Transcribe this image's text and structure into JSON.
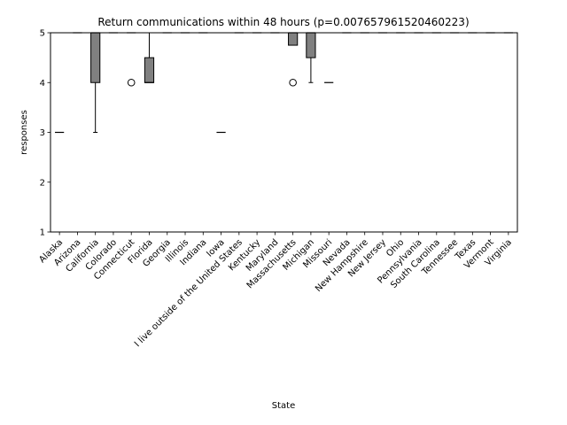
{
  "chart_data": {
    "type": "box",
    "title": "Return communications within 48 hours (p=0.007657961520460223)",
    "xlabel": "State",
    "ylabel": "responses",
    "ylim": [
      1,
      5
    ],
    "yticks": [
      1,
      2,
      3,
      4,
      5
    ],
    "box_color": "#808080",
    "categories": [
      "Alaska",
      "Arizona",
      "California",
      "Colorado",
      "Connecticut",
      "Florida",
      "Georgia",
      "Illinois",
      "Indiana",
      "Iowa",
      "I live outside of the United States",
      "Kentucky",
      "Maryland",
      "Massachusetts",
      "Michigan",
      "Missouri",
      "Nevada",
      "New Hampshire",
      "New Jersey",
      "Ohio",
      "Pennsylvania",
      "South Carolina",
      "Tennessee",
      "Texas",
      "Vermont",
      "Virginia"
    ],
    "boxes": [
      {
        "q1": 3,
        "median": 3,
        "q3": 3,
        "whislo": 3,
        "whishi": 3,
        "fliers": []
      },
      {
        "q1": 5,
        "median": 5,
        "q3": 5,
        "whislo": 5,
        "whishi": 5,
        "fliers": []
      },
      {
        "q1": 4,
        "median": 5,
        "q3": 5,
        "whislo": 3,
        "whishi": 5,
        "fliers": []
      },
      {
        "q1": 5,
        "median": 5,
        "q3": 5,
        "whislo": 5,
        "whishi": 5,
        "fliers": []
      },
      {
        "q1": 5,
        "median": 5,
        "q3": 5,
        "whislo": 5,
        "whishi": 5,
        "fliers": [
          4
        ]
      },
      {
        "q1": 4,
        "median": 4,
        "q3": 4.5,
        "whislo": 4,
        "whishi": 5,
        "fliers": []
      },
      {
        "q1": 5,
        "median": 5,
        "q3": 5,
        "whislo": 5,
        "whishi": 5,
        "fliers": []
      },
      {
        "q1": 5,
        "median": 5,
        "q3": 5,
        "whislo": 5,
        "whishi": 5,
        "fliers": []
      },
      {
        "q1": 5,
        "median": 5,
        "q3": 5,
        "whislo": 5,
        "whishi": 5,
        "fliers": []
      },
      {
        "q1": 3,
        "median": 3,
        "q3": 3,
        "whislo": 3,
        "whishi": 3,
        "fliers": []
      },
      {
        "q1": 5,
        "median": 5,
        "q3": 5,
        "whislo": 5,
        "whishi": 5,
        "fliers": []
      },
      {
        "q1": 5,
        "median": 5,
        "q3": 5,
        "whislo": 5,
        "whishi": 5,
        "fliers": []
      },
      {
        "q1": 5,
        "median": 5,
        "q3": 5,
        "whislo": 5,
        "whishi": 5,
        "fliers": []
      },
      {
        "q1": 4.75,
        "median": 5,
        "q3": 5,
        "whislo": 4.75,
        "whishi": 5,
        "fliers": [
          4
        ]
      },
      {
        "q1": 4.5,
        "median": 5,
        "q3": 5,
        "whislo": 4,
        "whishi": 5,
        "fliers": []
      },
      {
        "q1": 4,
        "median": 4,
        "q3": 4,
        "whislo": 4,
        "whishi": 4,
        "fliers": []
      },
      {
        "q1": 5,
        "median": 5,
        "q3": 5,
        "whislo": 5,
        "whishi": 5,
        "fliers": []
      },
      {
        "q1": 5,
        "median": 5,
        "q3": 5,
        "whislo": 5,
        "whishi": 5,
        "fliers": []
      },
      {
        "q1": 5,
        "median": 5,
        "q3": 5,
        "whislo": 5,
        "whishi": 5,
        "fliers": []
      },
      {
        "q1": 5,
        "median": 5,
        "q3": 5,
        "whislo": 5,
        "whishi": 5,
        "fliers": []
      },
      {
        "q1": 5,
        "median": 5,
        "q3": 5,
        "whislo": 5,
        "whishi": 5,
        "fliers": []
      },
      {
        "q1": 5,
        "median": 5,
        "q3": 5,
        "whislo": 5,
        "whishi": 5,
        "fliers": []
      },
      {
        "q1": 5,
        "median": 5,
        "q3": 5,
        "whislo": 5,
        "whishi": 5,
        "fliers": []
      },
      {
        "q1": 5,
        "median": 5,
        "q3": 5,
        "whislo": 5,
        "whishi": 5,
        "fliers": []
      },
      {
        "q1": 5,
        "median": 5,
        "q3": 5,
        "whislo": 5,
        "whishi": 5,
        "fliers": []
      },
      {
        "q1": 5,
        "median": 5,
        "q3": 5,
        "whislo": 5,
        "whishi": 5,
        "fliers": []
      }
    ]
  }
}
